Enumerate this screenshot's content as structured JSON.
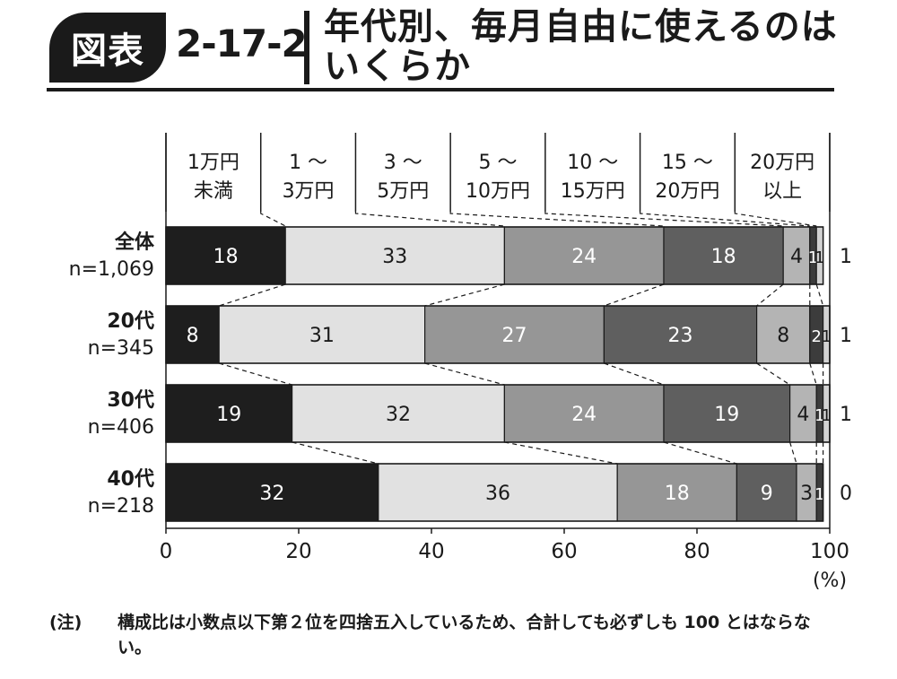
{
  "header": {
    "badge": "図表",
    "figure_number": "2-17-2",
    "title_line1": "年代別、毎月自由に使えるのは",
    "title_line2": "いくらか"
  },
  "chart_data": {
    "type": "bar",
    "stacked": true,
    "orientation": "horizontal",
    "categories": [
      {
        "label": "全体",
        "n": "n=1,069"
      },
      {
        "label": "20代",
        "n": "n=345"
      },
      {
        "label": "30代",
        "n": "n=406"
      },
      {
        "label": "40代",
        "n": "n=218"
      }
    ],
    "series": [
      {
        "name": [
          "1万円",
          "未満"
        ],
        "color": "#1e1e1e",
        "text_color": "#ffffff",
        "values": [
          18,
          8,
          19,
          32
        ]
      },
      {
        "name": [
          "1 〜",
          "3万円"
        ],
        "color": "#e1e1e1",
        "text_color": "#1a1a1a",
        "values": [
          33,
          31,
          32,
          36
        ]
      },
      {
        "name": [
          "3 〜",
          "5万円"
        ],
        "color": "#969696",
        "text_color": "#ffffff",
        "values": [
          24,
          27,
          24,
          18
        ]
      },
      {
        "name": [
          "5 〜",
          "10万円"
        ],
        "color": "#5f5f5f",
        "text_color": "#ffffff",
        "values": [
          18,
          23,
          19,
          9
        ]
      },
      {
        "name": [
          "10 〜",
          "15万円"
        ],
        "color": "#b4b4b4",
        "text_color": "#1a1a1a",
        "values": [
          4,
          8,
          4,
          3
        ]
      },
      {
        "name": [
          "15 〜",
          "20万円"
        ],
        "color": "#3c3c3c",
        "text_color": "#ffffff",
        "values": [
          1,
          2,
          1,
          1
        ]
      },
      {
        "name": [
          "20万円",
          "以上"
        ],
        "color": "#d2d2d2",
        "text_color": "#1a1a1a",
        "values": [
          1,
          1,
          1,
          0
        ]
      }
    ],
    "x_ticks": [
      0,
      20,
      40,
      60,
      80,
      100
    ],
    "xlim": [
      0,
      100
    ],
    "x_unit": "(%)",
    "legend_position": "top"
  },
  "note": {
    "mark": "(注)",
    "text": "構成比は小数点以下第２位を四捨五入しているため、合計しても必ずしも 100 とはならない。"
  }
}
